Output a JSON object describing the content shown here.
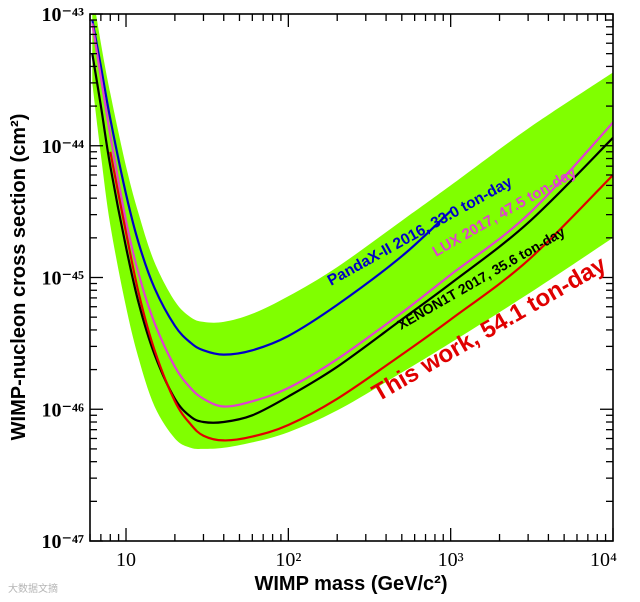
{
  "chart_data": {
    "type": "line",
    "title": "",
    "xlabel": "WIMP mass (GeV/c²)",
    "ylabel": "WIMP-nucleon cross section (cm²)",
    "xscale": "log",
    "yscale": "log",
    "xlim": [
      6,
      10000
    ],
    "ylim": [
      1e-47,
      1e-43
    ],
    "x_ticks": [
      {
        "value": 10,
        "label": "10"
      },
      {
        "value": 100,
        "label": "10²"
      },
      {
        "value": 1000,
        "label": "10³"
      },
      {
        "value": 10000,
        "label": "10⁴"
      }
    ],
    "y_ticks": [
      {
        "value": 1e-43,
        "label": "10⁻⁴³"
      },
      {
        "value": 1e-44,
        "label": "10⁻⁴⁴"
      },
      {
        "value": 1e-45,
        "label": "10⁻⁴⁵"
      },
      {
        "value": 1e-46,
        "label": "10⁻⁴⁶"
      },
      {
        "value": 1e-47,
        "label": "10⁻⁴⁷"
      }
    ],
    "band": {
      "name": "sensitivity band",
      "color": "#80ff00",
      "upper": {
        "x": [
          6.2,
          7,
          8,
          10,
          12,
          15,
          20,
          25,
          30,
          40,
          60,
          100,
          200,
          500,
          1000,
          3000,
          10000
        ],
        "y": [
          1.5e-43,
          6e-44,
          2.5e-44,
          7e-45,
          3e-45,
          1.3e-45,
          6.6e-46,
          5e-46,
          4.6e-46,
          4.6e-46,
          5.3e-46,
          7.2e-46,
          1.2e-45,
          2.7e-45,
          5e-45,
          1.35e-44,
          3.6e-44
        ]
      },
      "lower": {
        "x": [
          6.2,
          7,
          8,
          10,
          12,
          15,
          20,
          25,
          30,
          40,
          60,
          100,
          200,
          500,
          1000,
          3000,
          10000
        ],
        "y": [
          3e-44,
          8.5e-45,
          2.5e-45,
          6e-46,
          2.4e-46,
          1.05e-46,
          6e-47,
          5.1e-47,
          5e-47,
          5.1e-47,
          5.6e-47,
          6.7e-47,
          9.8e-47,
          1.9e-46,
          3.2e-46,
          7.5e-46,
          2e-45
        ]
      }
    },
    "series": [
      {
        "name": "PandaX-II 2016, 33.0 ton-day",
        "color": "#0000c8",
        "x": [
          6.2,
          7,
          8,
          10,
          12,
          15,
          20,
          25,
          30,
          40,
          60,
          100,
          200,
          500,
          1000
        ],
        "y": [
          9e-44,
          4e-44,
          1.6e-44,
          4.3e-45,
          1.8e-45,
          8.3e-46,
          4.3e-46,
          3.2e-46,
          2.8e-46,
          2.6e-46,
          2.8e-46,
          3.6e-46,
          6.2e-46,
          1.45e-45,
          3.2e-45
        ]
      },
      {
        "name": "LUX 2017, 47.5 ton-day",
        "color": "#e040d0",
        "x": [
          6.2,
          7,
          8,
          10,
          12,
          15,
          20,
          25,
          30,
          40,
          60,
          100,
          200,
          500,
          1000,
          3000,
          10000
        ],
        "y": [
          8.5e-44,
          3.3e-44,
          1.2e-44,
          2.7e-45,
          1.05e-45,
          4.5e-46,
          2.1e-46,
          1.45e-46,
          1.2e-46,
          1.05e-46,
          1.15e-46,
          1.45e-46,
          2.4e-46,
          5.4e-46,
          1.05e-45,
          3e-45,
          1.5e-44
        ]
      },
      {
        "name": "XENON1T 2017, 35.6 ton-day",
        "color": "#000000",
        "x": [
          6.2,
          7,
          8,
          10,
          12,
          15,
          20,
          25,
          30,
          40,
          60,
          100,
          200,
          500,
          1000,
          3000,
          10000
        ],
        "y": [
          5e-44,
          2e-44,
          7e-45,
          1.7e-45,
          6.3e-46,
          2.6e-46,
          1.2e-46,
          8.8e-47,
          8e-47,
          8e-47,
          9e-47,
          1.25e-46,
          2.1e-46,
          4.8e-46,
          9e-46,
          2.6e-45,
          1.15e-44
        ]
      },
      {
        "name": "This work, 54.1 ton-day",
        "color": "#e00000",
        "x": [
          8,
          10,
          12,
          15,
          20,
          25,
          30,
          40,
          60,
          100,
          200,
          500,
          1000,
          3000,
          10000
        ],
        "y": [
          9e-45,
          2.2e-45,
          7.5e-46,
          2.8e-46,
          1.15e-46,
          7.7e-47,
          6.3e-47,
          5.8e-47,
          6.2e-47,
          7.6e-47,
          1.2e-46,
          2.6e-46,
          4.8e-46,
          1.35e-45,
          6e-45
        ]
      }
    ],
    "annotations": [
      {
        "series": 0,
        "text": "PandaX-II 2016, 33.0 ton-day"
      },
      {
        "series": 1,
        "text": "LUX 2017, 47.5 ton-day"
      },
      {
        "series": 2,
        "text": "XENON1T 2017, 35.6 ton-day"
      },
      {
        "series": 3,
        "text": "This work, 54.1 ton-day"
      }
    ]
  },
  "watermark": "大数据文摘"
}
